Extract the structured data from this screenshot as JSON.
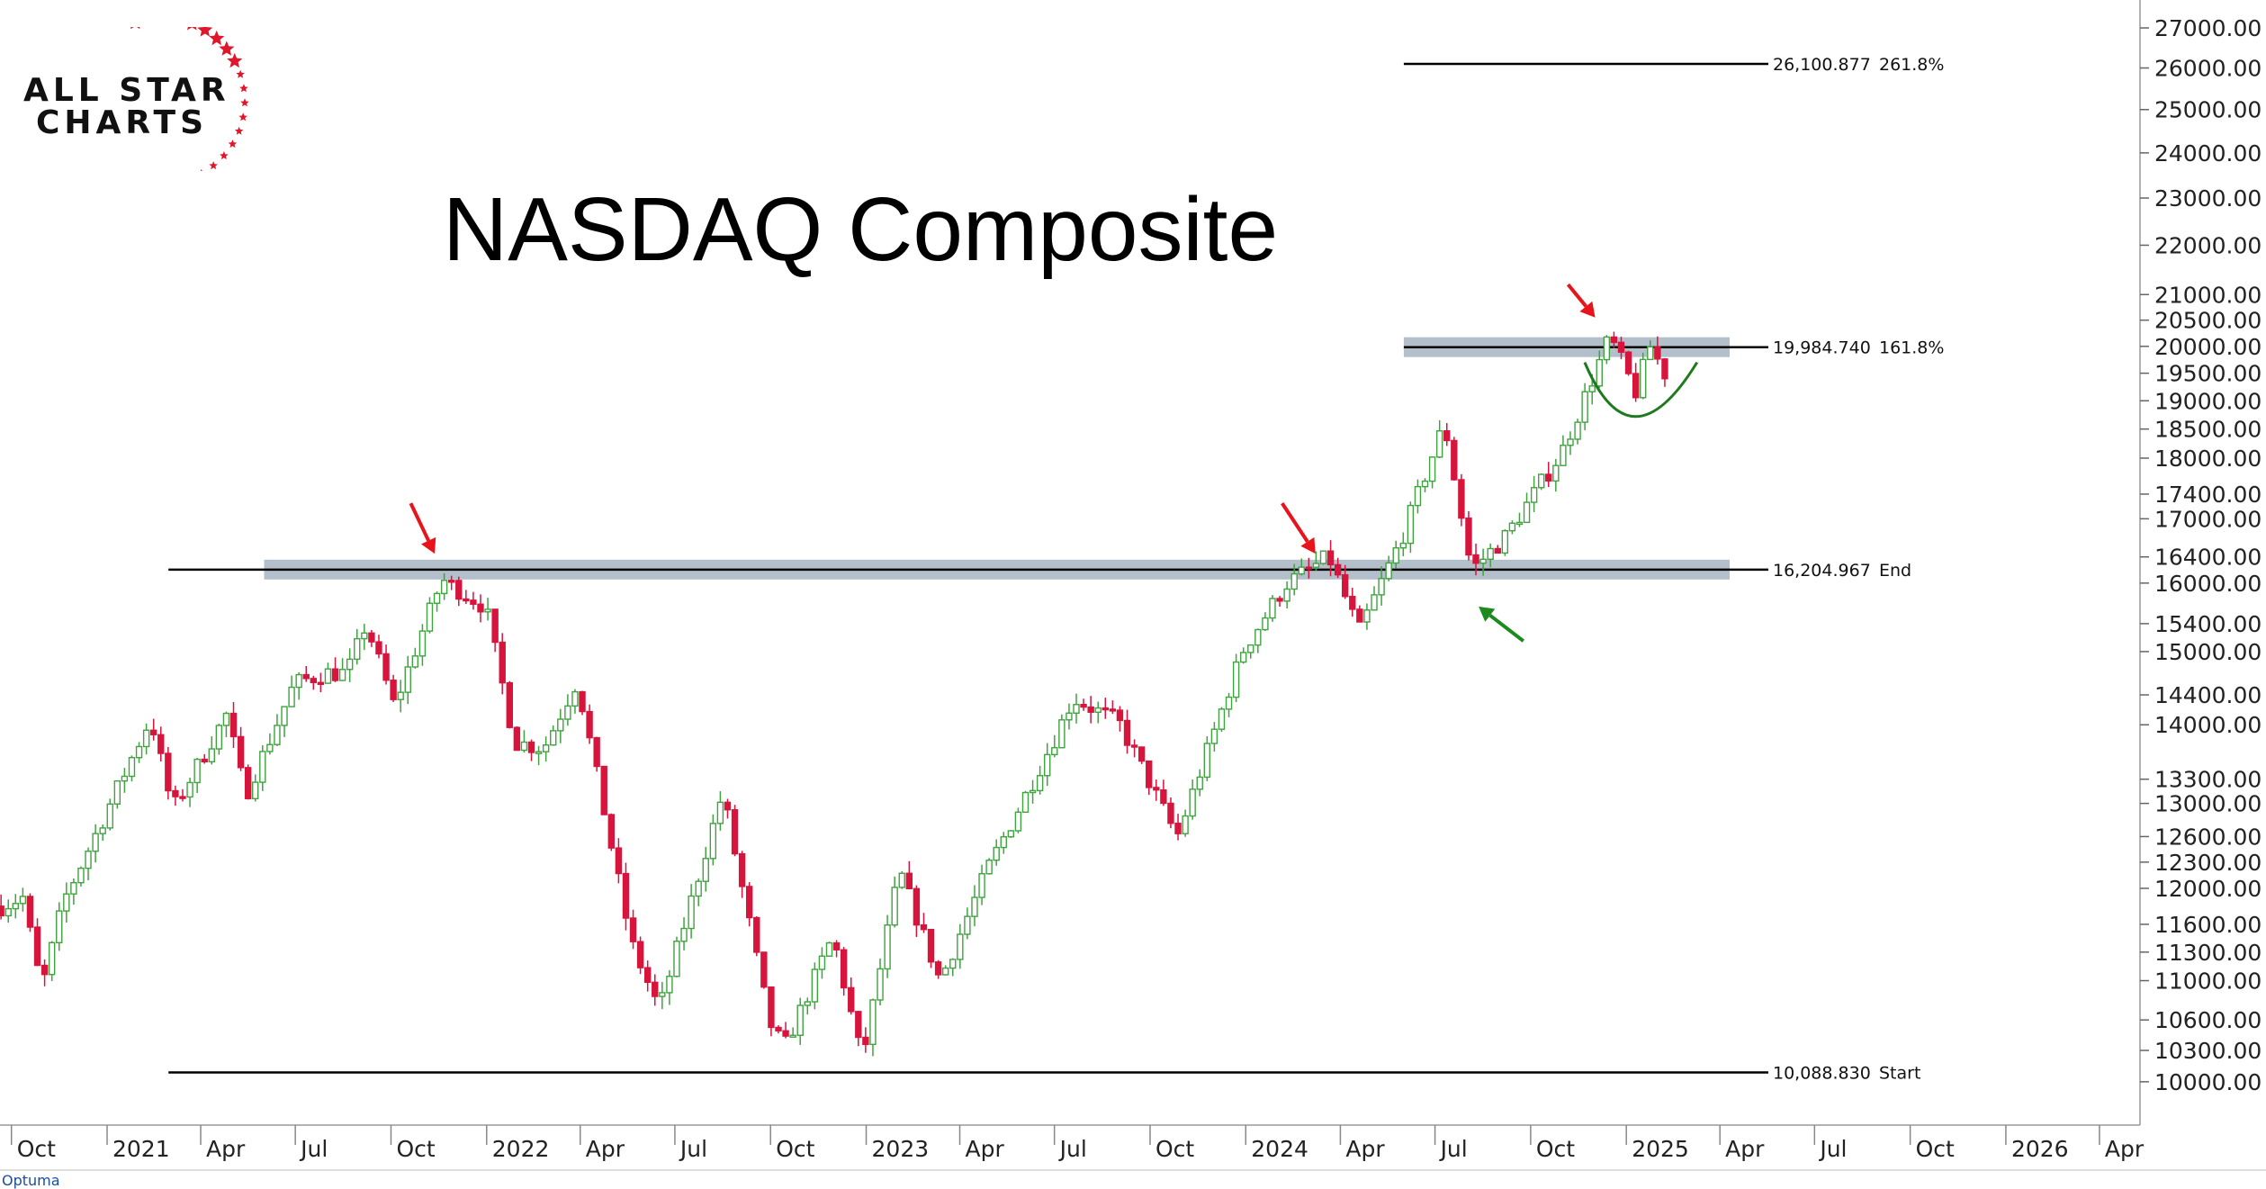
{
  "brand": {
    "line1": "ALL STAR",
    "line2": "CHARTS",
    "watermark": "Optuma"
  },
  "colors": {
    "up": "#3fa33f",
    "down": "#d6143c",
    "band": "#9aa9b8",
    "arrow_red": "#e8141c",
    "arrow_green": "#1d8a1d",
    "arc": "#1d7a1d"
  },
  "chart_data": {
    "type": "candlestick",
    "title": "NASDAQ Composite",
    "y_scale": "log",
    "ylim": [
      9600,
      27300
    ],
    "xlim": [
      "2020-09-20",
      "2026-05-10"
    ],
    "y_ticks": [
      "27000.00",
      "26000.00",
      "25000.00",
      "24000.00",
      "23000.00",
      "22000.00",
      "21000.00",
      "20500.00",
      "20000.00",
      "19500.00",
      "19000.00",
      "18500.00",
      "18000.00",
      "17400.00",
      "17000.00",
      "16400.00",
      "16000.00",
      "15400.00",
      "15000.00",
      "14400.00",
      "14000.00",
      "13300.00",
      "13000.00",
      "12600.00",
      "12300.00",
      "12000.00",
      "11600.00",
      "11300.00",
      "11000.00",
      "10600.00",
      "10300.00",
      "10000.00"
    ],
    "x_ticks": [
      {
        "label": "Oct",
        "date": "2020-10-01"
      },
      {
        "label": "2021",
        "date": "2021-01-01"
      },
      {
        "label": "Apr",
        "date": "2021-04-01"
      },
      {
        "label": "Jul",
        "date": "2021-07-01"
      },
      {
        "label": "Oct",
        "date": "2021-10-01"
      },
      {
        "label": "2022",
        "date": "2022-01-01"
      },
      {
        "label": "Apr",
        "date": "2022-04-01"
      },
      {
        "label": "Jul",
        "date": "2022-07-01"
      },
      {
        "label": "Oct",
        "date": "2022-10-01"
      },
      {
        "label": "2023",
        "date": "2023-01-01"
      },
      {
        "label": "Apr",
        "date": "2023-04-01"
      },
      {
        "label": "Jul",
        "date": "2023-07-01"
      },
      {
        "label": "Oct",
        "date": "2023-10-01"
      },
      {
        "label": "2024",
        "date": "2024-01-01"
      },
      {
        "label": "Apr",
        "date": "2024-04-01"
      },
      {
        "label": "Jul",
        "date": "2024-07-01"
      },
      {
        "label": "Oct",
        "date": "2024-10-01"
      },
      {
        "label": "2025",
        "date": "2025-01-01"
      },
      {
        "label": "Apr",
        "date": "2025-04-01"
      },
      {
        "label": "Jul",
        "date": "2025-07-01"
      },
      {
        "label": "Oct",
        "date": "2025-10-01"
      },
      {
        "label": "2026",
        "date": "2026-01-01"
      },
      {
        "label": "Apr",
        "date": "2026-04-01"
      }
    ],
    "levels": [
      {
        "value": 26100.877,
        "label": "26,100.877",
        "tag": "261.8%",
        "from": "2024-06-01",
        "band": false
      },
      {
        "value": 19984.74,
        "label": "19,984.740",
        "tag": "161.8%",
        "from": "2024-06-01",
        "band": true
      },
      {
        "value": 16204.967,
        "label": "16,204.967",
        "tag": "End",
        "from": "2021-03-01",
        "band": true,
        "band_from": "2021-06-01"
      },
      {
        "value": 10088.83,
        "label": "10,088.830",
        "tag": "Start",
        "from": "2021-03-01",
        "band": false
      }
    ],
    "path_anchors": [
      [
        "2020-09-21",
        11800
      ],
      [
        "2020-10-12",
        11900
      ],
      [
        "2020-10-30",
        10900
      ],
      [
        "2020-11-20",
        11850
      ],
      [
        "2020-12-31",
        12888
      ],
      [
        "2021-02-12",
        14095
      ],
      [
        "2021-03-05",
        12920
      ],
      [
        "2021-04-26",
        14138
      ],
      [
        "2021-05-14",
        13100
      ],
      [
        "2021-06-30",
        14550
      ],
      [
        "2021-07-30",
        14700
      ],
      [
        "2021-08-20",
        14700
      ],
      [
        "2021-09-07",
        15400
      ],
      [
        "2021-10-04",
        14250
      ],
      [
        "2021-11-19",
        16057
      ],
      [
        "2021-12-31",
        15645
      ],
      [
        "2022-01-28",
        13770
      ],
      [
        "2022-02-25",
        13700
      ],
      [
        "2022-03-29",
        14600
      ],
      [
        "2022-05-20",
        11400
      ],
      [
        "2022-06-16",
        10700
      ],
      [
        "2022-08-16",
        13128
      ],
      [
        "2022-09-30",
        10575
      ],
      [
        "2022-10-14",
        10320
      ],
      [
        "2022-11-30",
        11468
      ],
      [
        "2022-12-28",
        10200
      ],
      [
        "2023-02-02",
        12200
      ],
      [
        "2023-03-13",
        11000
      ],
      [
        "2023-04-28",
        12227
      ],
      [
        "2023-06-30",
        13790
      ],
      [
        "2023-07-19",
        14358
      ],
      [
        "2023-09-01",
        14030
      ],
      [
        "2023-10-27",
        12595
      ],
      [
        "2023-12-29",
        15011
      ],
      [
        "2024-02-09",
        15990
      ],
      [
        "2024-03-21",
        16400
      ],
      [
        "2024-04-19",
        15282
      ],
      [
        "2024-05-31",
        16735
      ],
      [
        "2024-07-10",
        18600
      ],
      [
        "2024-08-05",
        16200
      ],
      [
        "2024-09-06",
        16700
      ],
      [
        "2024-10-31",
        18100
      ],
      [
        "2024-12-16",
        20173
      ],
      [
        "2025-01-10",
        19162
      ],
      [
        "2025-01-24",
        20000
      ],
      [
        "2025-02-07",
        19500
      ]
    ],
    "bars": 230,
    "annotations": {
      "red_arrows": [
        {
          "tip": [
            "2021-11-12",
            16450
          ],
          "tail": [
            "2021-10-20",
            17250
          ]
        },
        {
          "tip": [
            "2024-03-08",
            16450
          ],
          "tail": [
            "2024-02-05",
            17250
          ]
        },
        {
          "tip": [
            "2024-12-02",
            20550
          ],
          "tail": [
            "2024-11-06",
            21200
          ]
        }
      ],
      "green_arrow": {
        "tip": [
          "2024-08-12",
          15650
        ],
        "tail": [
          "2024-09-24",
          15150
        ]
      },
      "arc": {
        "from": [
          "2024-11-22",
          19700
        ],
        "to": [
          "2025-03-10",
          19700
        ],
        "bottom": [
          "2025-01-05",
          18720
        ]
      }
    }
  }
}
